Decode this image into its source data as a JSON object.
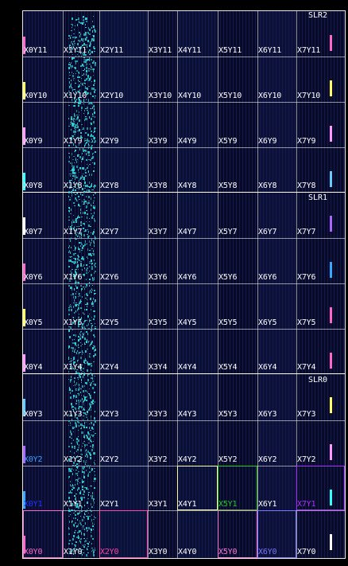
{
  "device_view": {
    "columns": [
      "X0",
      "X1",
      "X2",
      "X3",
      "X4",
      "X5",
      "X6",
      "X7"
    ],
    "slr_labels": [
      "SLR2",
      "SLR1",
      "SLR0"
    ],
    "clock_regions": [
      {
        "row": 11,
        "labels": [
          "X0Y11",
          "X1Y11",
          "X2Y11",
          "X3Y11",
          "X4Y11",
          "X5Y11",
          "X6Y11",
          "X7Y11"
        ]
      },
      {
        "row": 10,
        "labels": [
          "X0Y10",
          "X1Y10",
          "X2Y10",
          "X3Y10",
          "X4Y10",
          "X5Y10",
          "X6Y10",
          "X7Y10"
        ]
      },
      {
        "row": 9,
        "labels": [
          "X0Y9",
          "X1Y9",
          "X2Y9",
          "X3Y9",
          "X4Y9",
          "X5Y9",
          "X6Y9",
          "X7Y9"
        ]
      },
      {
        "row": 8,
        "labels": [
          "X0Y8",
          "X1Y8",
          "X2Y8",
          "X3Y8",
          "X4Y8",
          "X5Y8",
          "X6Y8",
          "X7Y8"
        ]
      },
      {
        "row": 7,
        "labels": [
          "X0Y7",
          "X1Y7",
          "X2Y7",
          "X3Y7",
          "X4Y7",
          "X5Y7",
          "X6Y7",
          "X7Y7"
        ]
      },
      {
        "row": 6,
        "labels": [
          "X0Y6",
          "X1Y6",
          "X2Y6",
          "X3Y6",
          "X4Y6",
          "X5Y6",
          "X6Y6",
          "X7Y6"
        ]
      },
      {
        "row": 5,
        "labels": [
          "X0Y5",
          "X1Y5",
          "X2Y5",
          "X3Y5",
          "X4Y5",
          "X5Y5",
          "X6Y5",
          "X7Y5"
        ]
      },
      {
        "row": 4,
        "labels": [
          "X0Y4",
          "X1Y4",
          "X2Y4",
          "X3Y4",
          "X4Y4",
          "X5Y4",
          "X6Y4",
          "X7Y4"
        ]
      },
      {
        "row": 3,
        "labels": [
          "X0Y3",
          "X1Y3",
          "X2Y3",
          "X3Y3",
          "X4Y3",
          "X5Y3",
          "X6Y3",
          "X7Y3"
        ]
      },
      {
        "row": 2,
        "labels": [
          "X0Y2",
          "X1Y2",
          "X2Y2",
          "X3Y2",
          "X4Y2",
          "X5Y2",
          "X6Y2",
          "X7Y2"
        ]
      },
      {
        "row": 1,
        "labels": [
          "X0Y1",
          "X1Y1",
          "X2Y1",
          "X3Y1",
          "X4Y1",
          "X5Y1",
          "X6Y1",
          "X7Y1"
        ]
      },
      {
        "row": 0,
        "labels": [
          "X0Y0",
          "X1Y0",
          "X2Y0",
          "X3Y0",
          "X4Y0",
          "X5Y0",
          "X6Y0",
          "X7Y0"
        ]
      }
    ],
    "colors": {
      "background": "#000000",
      "fabric": "#060820",
      "grid_line": "#ffffff",
      "placed_cells": "#2fd6dc",
      "label_default": "#ffffff",
      "label_x0y2": "#3aa0ff",
      "label_x0y1": "#2233ff",
      "label_x5y1": "#22cc22",
      "label_x7y1": "#aa33ff",
      "label_x0y0": "#ff66cc",
      "label_x2y0": "#ff44aa",
      "label_x5y0": "#ff77dd",
      "label_x6y0": "#7777ff"
    }
  }
}
